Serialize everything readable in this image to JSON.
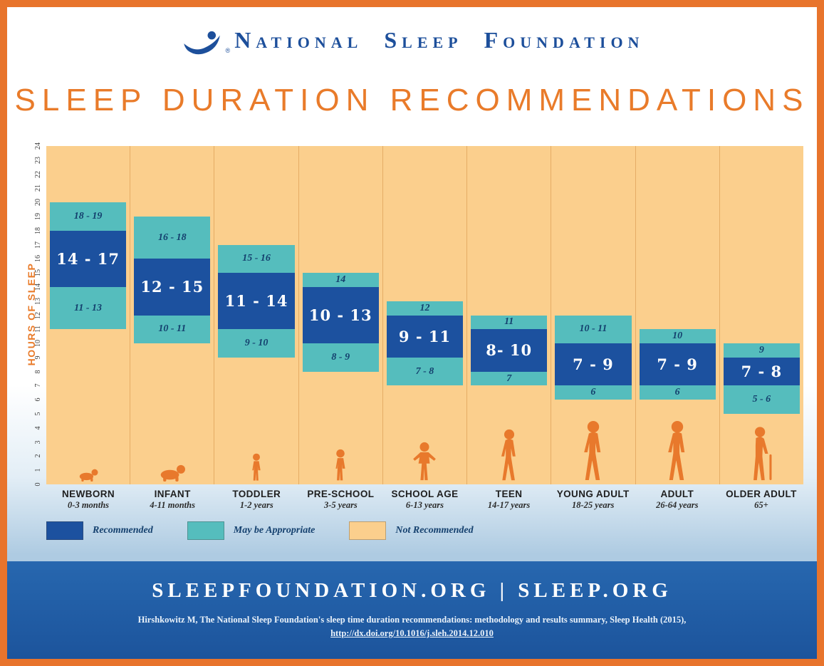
{
  "brand": {
    "words": [
      "National",
      "Sleep",
      "Foundation"
    ],
    "registered_mark": "®"
  },
  "title": "SLEEP DURATION RECOMMENDATIONS",
  "chart_data": {
    "type": "bar",
    "stacked": true,
    "title": "SLEEP DURATION RECOMMENDATIONS",
    "ylabel": "HOURS OF SLEEP",
    "ylim": [
      0,
      24
    ],
    "y_tick_step": 1,
    "grid": "vertical-column-separators",
    "legend_position": "bottom-left",
    "colors": {
      "recommended": "#1C519F",
      "may_be_appropriate": "#55BDBD",
      "not_recommended": "#FBCF8D"
    },
    "legend": [
      {
        "label": "Recommended",
        "key": "recommended"
      },
      {
        "label": "May be Appropriate",
        "key": "may_be_appropriate"
      },
      {
        "label": "Not Recommended",
        "key": "not_recommended"
      }
    ],
    "groups": [
      {
        "label": "NEWBORN",
        "age_range": "0-3 months",
        "figure": "baby-crawling",
        "bands": {
          "upper": {
            "label": "18 - 19",
            "from": 18,
            "to": 20
          },
          "recommended": {
            "label": "14 - 17",
            "from": 14,
            "to": 18
          },
          "lower": {
            "label": "11 - 13",
            "from": 11,
            "to": 14
          }
        }
      },
      {
        "label": "INFANT",
        "age_range": "4-11 months",
        "figure": "infant-crawling",
        "bands": {
          "upper": {
            "label": "16 - 18",
            "from": 16,
            "to": 19
          },
          "recommended": {
            "label": "12 - 15",
            "from": 12,
            "to": 16
          },
          "lower": {
            "label": "10 - 11",
            "from": 10,
            "to": 12
          }
        }
      },
      {
        "label": "TODDLER",
        "age_range": "1-2 years",
        "figure": "toddler-standing",
        "bands": {
          "upper": {
            "label": "15 - 16",
            "from": 15,
            "to": 17
          },
          "recommended": {
            "label": "11 - 14",
            "from": 11,
            "to": 15
          },
          "lower": {
            "label": "9 - 10",
            "from": 9,
            "to": 11
          }
        }
      },
      {
        "label": "PRE-SCHOOL",
        "age_range": "3-5 years",
        "figure": "child-standing",
        "bands": {
          "upper": {
            "label": "14",
            "from": 14,
            "to": 15
          },
          "recommended": {
            "label": "10 - 13",
            "from": 10,
            "to": 14
          },
          "lower": {
            "label": "8 - 9",
            "from": 8,
            "to": 10
          }
        }
      },
      {
        "label": "SCHOOL AGE",
        "age_range": "6-13 years",
        "figure": "child-arms-out",
        "bands": {
          "upper": {
            "label": "12",
            "from": 12,
            "to": 13
          },
          "recommended": {
            "label": "9 - 11",
            "from": 9,
            "to": 12
          },
          "lower": {
            "label": "7 - 8",
            "from": 7,
            "to": 9
          }
        }
      },
      {
        "label": "TEEN",
        "age_range": "14-17 years",
        "figure": "teen-walking",
        "bands": {
          "upper": {
            "label": "11",
            "from": 11,
            "to": 12
          },
          "recommended": {
            "label": "8- 10",
            "from": 8,
            "to": 11
          },
          "lower": {
            "label": "7",
            "from": 7,
            "to": 8
          }
        }
      },
      {
        "label": "YOUNG ADULT",
        "age_range": "18-25 years",
        "figure": "young-adult-walking",
        "bands": {
          "upper": {
            "label": "10 - 11",
            "from": 10,
            "to": 12
          },
          "recommended": {
            "label": "7 - 9",
            "from": 7,
            "to": 10
          },
          "lower": {
            "label": "6",
            "from": 6,
            "to": 7
          }
        }
      },
      {
        "label": "ADULT",
        "age_range": "26-64 years",
        "figure": "adult-walking",
        "bands": {
          "upper": {
            "label": "10",
            "from": 10,
            "to": 11
          },
          "recommended": {
            "label": "7 - 9",
            "from": 7,
            "to": 10
          },
          "lower": {
            "label": "6",
            "from": 6,
            "to": 7
          }
        }
      },
      {
        "label": "OLDER ADULT",
        "age_range": "65+",
        "figure": "older-adult-cane",
        "bands": {
          "upper": {
            "label": "9",
            "from": 9,
            "to": 10
          },
          "recommended": {
            "label": "7 - 8",
            "from": 7,
            "to": 9
          },
          "lower": {
            "label": "5 - 6",
            "from": 5,
            "to": 7
          }
        }
      }
    ]
  },
  "footer": {
    "urls": "SLEEPFOUNDATION.ORG | SLEEP.ORG",
    "citation_lines": [
      "Hirshkowitz M, The National Sleep Foundation's sleep time duration recommendations: methodology and results summary, Sleep Health (2015),",
      "http://dx.doi.org/10.1016/j.sleh.2014.12.010"
    ]
  }
}
